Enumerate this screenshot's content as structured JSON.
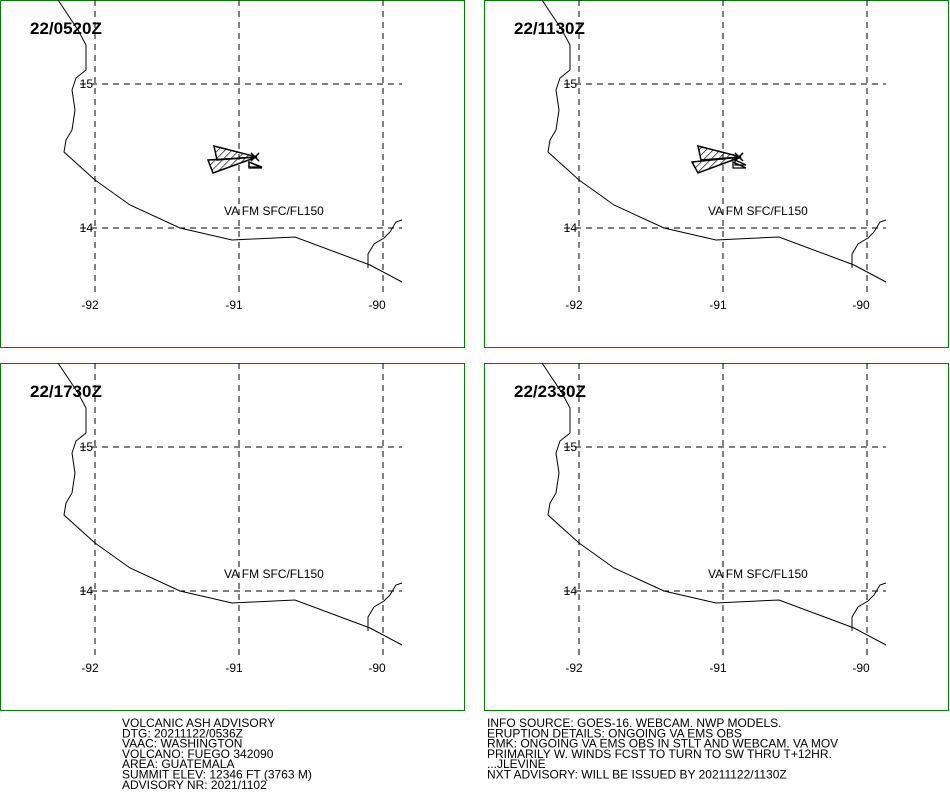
{
  "panels": [
    {
      "time": "22/0520Z",
      "va_label": "VA FM SFC/FL150"
    },
    {
      "time": "22/1130Z",
      "va_label": "VA FM SFC/FL150"
    },
    {
      "time": "22/1730Z",
      "va_label": "VA FM SFC/FL150"
    },
    {
      "time": "22/2330Z",
      "va_label": "VA FM SFC/FL150"
    }
  ],
  "grid": {
    "lat_labels": [
      "15",
      "14"
    ],
    "lon_labels": [
      "-92",
      "-91",
      "-90"
    ]
  },
  "advisory": {
    "left": [
      "VOLCANIC ASH ADVISORY",
      "DTG: 20211122/0536Z",
      "VAAC: WASHINGTON",
      "VOLCANO: FUEGO 342090",
      "AREA: GUATEMALA",
      "SUMMIT ELEV: 12346 FT (3763 M)",
      "ADVISORY NR: 2021/1102"
    ],
    "right": [
      "INFO SOURCE: GOES-16. WEBCAM. NWP MODELS.",
      "ERUPTION DETAILS: ONGOING VA EMS OBS",
      "RMK: ONGOING VA EMS OBS IN STLT AND WEBCAM. VA MOV",
      "PRIMARILY W. WINDS FCST TO TURN TO SW THRU T+12HR.",
      "...JLEVINE",
      "NXT ADVISORY: WILL BE ISSUED BY 20211122/1130Z"
    ]
  }
}
